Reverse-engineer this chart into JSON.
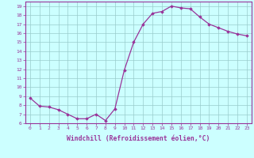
{
  "x": [
    0,
    1,
    2,
    3,
    4,
    5,
    6,
    7,
    8,
    9,
    10,
    11,
    12,
    13,
    14,
    15,
    16,
    17,
    18,
    19,
    20,
    21,
    22,
    23
  ],
  "y": [
    8.8,
    7.9,
    7.8,
    7.5,
    7.0,
    6.5,
    6.5,
    7.0,
    6.3,
    7.6,
    11.9,
    15.0,
    17.0,
    18.2,
    18.4,
    19.0,
    18.8,
    18.7,
    17.8,
    17.0,
    16.6,
    16.2,
    15.9,
    15.7
  ],
  "xlim": [
    -0.5,
    23.5
  ],
  "ylim": [
    6,
    19.5
  ],
  "yticks": [
    6,
    7,
    8,
    9,
    10,
    11,
    12,
    13,
    14,
    15,
    16,
    17,
    18,
    19
  ],
  "xticks": [
    0,
    1,
    2,
    3,
    4,
    5,
    6,
    7,
    8,
    9,
    10,
    11,
    12,
    13,
    14,
    15,
    16,
    17,
    18,
    19,
    20,
    21,
    22,
    23
  ],
  "xlabel": "Windchill (Refroidissement éolien,°C)",
  "line_color": "#993399",
  "marker": "D",
  "marker_size": 1.8,
  "linewidth": 0.9,
  "bg_color": "#ccffff",
  "grid_color": "#99cccc",
  "tick_color": "#993399",
  "label_color": "#993399",
  "tick_fontsize": 4.5,
  "xlabel_fontsize": 5.8
}
